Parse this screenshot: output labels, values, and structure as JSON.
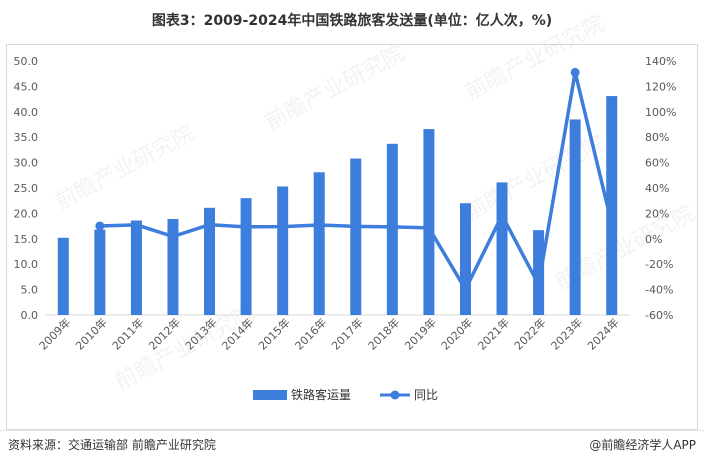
{
  "header": {
    "title": "图表3：2009-2024年中国铁路旅客发送量(单位：亿人次，%)"
  },
  "footer": {
    "source": "资料来源：交通运输部 前瞻产业研究院",
    "brand": "@前瞻经济学人APP"
  },
  "watermark": {
    "text": "前瞻产业研究院"
  },
  "colors": {
    "bar": "#3d7ddc",
    "line": "#3d7ddc",
    "axis": "#d9d9d9",
    "text": "#595959"
  },
  "chart_data": {
    "type": "bar",
    "categories": [
      "2009年",
      "2010年",
      "2011年",
      "2012年",
      "2013年",
      "2014年",
      "2015年",
      "2016年",
      "2017年",
      "2018年",
      "2019年",
      "2020年",
      "2021年",
      "2022年",
      "2023年",
      "2024年"
    ],
    "series": [
      {
        "name": "铁路客运量",
        "type": "bar",
        "axis": "left",
        "values": [
          15.2,
          16.8,
          18.6,
          18.9,
          21.1,
          23.0,
          25.3,
          28.1,
          30.8,
          33.7,
          36.6,
          22.0,
          26.1,
          16.7,
          38.5,
          43.1
        ]
      },
      {
        "name": "同比",
        "type": "line",
        "axis": "right",
        "values": [
          null,
          10.1,
          11.0,
          1.8,
          11.1,
          9.4,
          9.6,
          10.9,
          9.8,
          9.4,
          8.6,
          -39.8,
          18.5,
          -36.0,
          131.0,
          12.0
        ]
      }
    ],
    "y_left": {
      "min": 0,
      "max": 50,
      "step": 5,
      "ticks": [
        "0.0",
        "5.0",
        "10.0",
        "15.0",
        "20.0",
        "25.0",
        "30.0",
        "35.0",
        "40.0",
        "45.0",
        "50.0"
      ]
    },
    "y_right": {
      "min": -60,
      "max": 140,
      "step": 20,
      "ticks": [
        "-60%",
        "-40%",
        "-20%",
        "0%",
        "20%",
        "40%",
        "60%",
        "80%",
        "100%",
        "120%",
        "140%"
      ]
    },
    "grid": false,
    "legend_position": "bottom"
  }
}
